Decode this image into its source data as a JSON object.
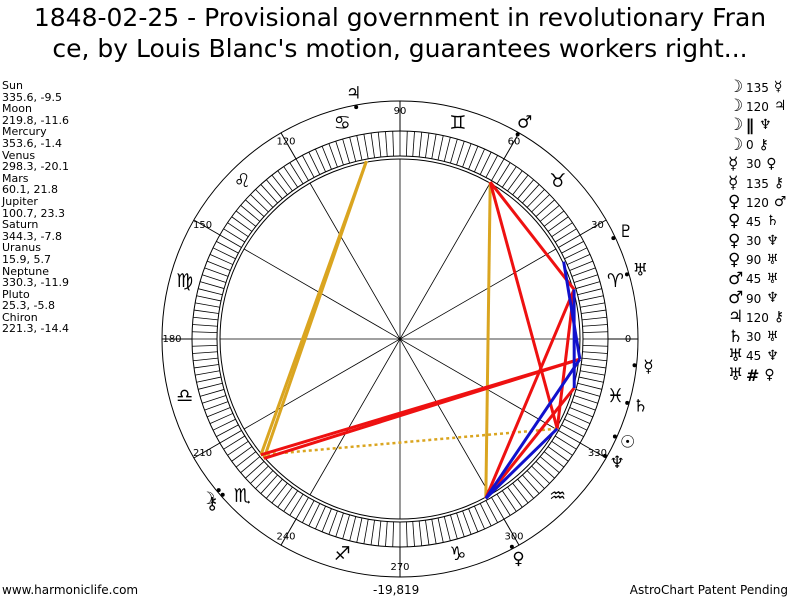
{
  "title": "1848-02-25 - Provisional government in revolutionary Fran\nce, by Louis Blanc's motion, guarantees workers right...",
  "planet_list": [
    {
      "name": "Sun",
      "coords": "335.6, -9.5"
    },
    {
      "name": "Moon",
      "coords": "219.8, -11.6"
    },
    {
      "name": "Mercury",
      "coords": "353.6, -1.4"
    },
    {
      "name": "Venus",
      "coords": "298.3, -20.1"
    },
    {
      "name": "Mars",
      "coords": "60.1, 21.8"
    },
    {
      "name": "Jupiter",
      "coords": "100.7, 23.3"
    },
    {
      "name": "Saturn",
      "coords": "344.3, -7.8"
    },
    {
      "name": "Uranus",
      "coords": "15.9, 5.7"
    },
    {
      "name": "Neptune",
      "coords": "330.3, -11.9"
    },
    {
      "name": "Pluto",
      "coords": "25.3, -5.8"
    },
    {
      "name": "Chiron",
      "coords": "221.3, -14.4"
    }
  ],
  "aspect_list": [
    {
      "p1": "☽",
      "aspect": "135",
      "p2": "☿"
    },
    {
      "p1": "☽",
      "aspect": "120",
      "p2": "♃"
    },
    {
      "p1": "☽",
      "aspect": "∥",
      "p2": "♆"
    },
    {
      "p1": "☽",
      "aspect": "0",
      "p2": "⚷"
    },
    {
      "p1": "☿",
      "aspect": "30",
      "p2": "♀"
    },
    {
      "p1": "☿",
      "aspect": "135",
      "p2": "⚷"
    },
    {
      "p1": "♀",
      "aspect": "120",
      "p2": "♂"
    },
    {
      "p1": "♀",
      "aspect": "45",
      "p2": "♄"
    },
    {
      "p1": "♀",
      "aspect": "30",
      "p2": "♆"
    },
    {
      "p1": "♀",
      "aspect": "90",
      "p2": "♅"
    },
    {
      "p1": "♂",
      "aspect": "45",
      "p2": "♅"
    },
    {
      "p1": "♂",
      "aspect": "90",
      "p2": "♆"
    },
    {
      "p1": "♃",
      "aspect": "120",
      "p2": "⚷"
    },
    {
      "p1": "♄",
      "aspect": "30",
      "p2": "♅"
    },
    {
      "p1": "♅",
      "aspect": "45",
      "p2": "♆"
    },
    {
      "p1": "♅",
      "aspect": "#",
      "p2": "♀"
    }
  ],
  "wheel": {
    "degree_labels": [
      "0",
      "30",
      "60",
      "90",
      "120",
      "150",
      "180",
      "210",
      "240",
      "270",
      "300",
      "330"
    ],
    "zodiac_signs": [
      {
        "glyph": "♈",
        "start": 0
      },
      {
        "glyph": "♉",
        "start": 30
      },
      {
        "glyph": "♊",
        "start": 60
      },
      {
        "glyph": "♋",
        "start": 90
      },
      {
        "glyph": "♌",
        "start": 120
      },
      {
        "glyph": "♍",
        "start": 150
      },
      {
        "glyph": "♎",
        "start": 180
      },
      {
        "glyph": "♏",
        "start": 210
      },
      {
        "glyph": "♐",
        "start": 240
      },
      {
        "glyph": "♑",
        "start": 270
      },
      {
        "glyph": "♒",
        "start": 300
      },
      {
        "glyph": "♓",
        "start": 330
      }
    ],
    "planets": [
      {
        "glyph": "☉",
        "lon": 335.6
      },
      {
        "glyph": "☽",
        "lon": 219.8
      },
      {
        "glyph": "☿",
        "lon": 353.6
      },
      {
        "glyph": "♀",
        "lon": 298.3
      },
      {
        "glyph": "♂",
        "lon": 60.1
      },
      {
        "glyph": "♃",
        "lon": 100.7
      },
      {
        "glyph": "♄",
        "lon": 344.3
      },
      {
        "glyph": "♅",
        "lon": 15.9
      },
      {
        "glyph": "♆",
        "lon": 330.3
      },
      {
        "glyph": "♇",
        "lon": 25.3
      },
      {
        "glyph": "⚷",
        "lon": 221.3
      }
    ],
    "aspect_lines": [
      {
        "from": 219.8,
        "to": 100.7,
        "color": "#DAA520",
        "style": "solid"
      },
      {
        "from": 221.3,
        "to": 100.7,
        "color": "#DAA520",
        "style": "solid"
      },
      {
        "from": 298.3,
        "to": 60.1,
        "color": "#DAA520",
        "style": "solid"
      },
      {
        "from": 219.8,
        "to": 330.3,
        "color": "#DAA520",
        "style": "dotted"
      },
      {
        "from": 219.8,
        "to": 353.6,
        "color": "#EE1111",
        "style": "solid"
      },
      {
        "from": 221.3,
        "to": 353.6,
        "color": "#EE1111",
        "style": "solid"
      },
      {
        "from": 60.1,
        "to": 15.9,
        "color": "#EE1111",
        "style": "solid"
      },
      {
        "from": 60.1,
        "to": 330.3,
        "color": "#EE1111",
        "style": "solid"
      },
      {
        "from": 298.3,
        "to": 15.9,
        "color": "#EE1111",
        "style": "solid"
      },
      {
        "from": 298.3,
        "to": 344.3,
        "color": "#EE1111",
        "style": "solid"
      },
      {
        "from": 15.9,
        "to": 330.3,
        "color": "#EE1111",
        "style": "solid"
      },
      {
        "from": 298.3,
        "to": 353.6,
        "color": "#1111CC",
        "style": "solid"
      },
      {
        "from": 298.3,
        "to": 330.3,
        "color": "#1111CC",
        "style": "solid"
      },
      {
        "from": 15.9,
        "to": 344.3,
        "color": "#1111CC",
        "style": "solid"
      },
      {
        "from": 25.3,
        "to": 353.6,
        "color": "#1111CC",
        "style": "solid"
      }
    ]
  },
  "footer": {
    "left": "www.harmoniclife.com",
    "middle": "-19,819",
    "right": "AstroChart Patent Pending"
  },
  "colors": {
    "trine": "#DAA520",
    "hard": "#EE1111",
    "soft": "#1111CC"
  }
}
